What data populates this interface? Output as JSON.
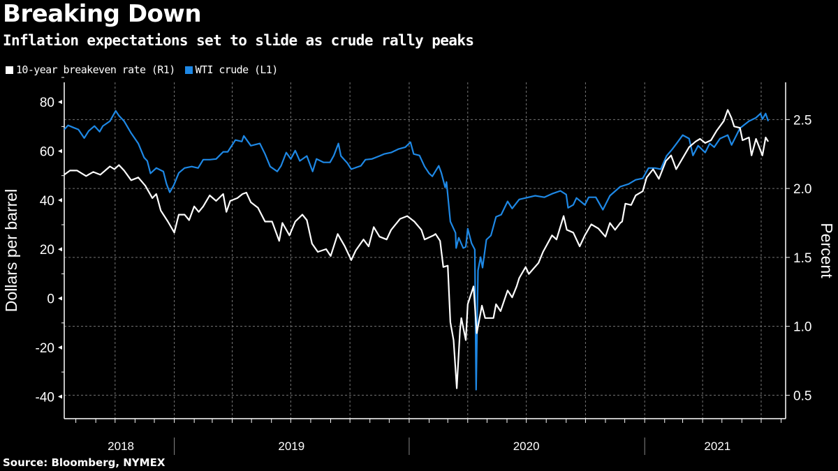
{
  "title": "Breaking Down",
  "subtitle": "Inflation expectations set to slide as crude rally peaks",
  "source": "Source: Bloomberg, NYMEX",
  "chart_data": {
    "type": "line",
    "title": "Breaking Down",
    "subtitle": "Inflation expectations set to slide as crude rally peaks",
    "legend_position": "top-left",
    "grid": true,
    "xlim": [
      "2018-07-14",
      "2021-08-08"
    ],
    "x_tick_labels": [
      {
        "label": "2018",
        "center": "2018-10-10"
      },
      {
        "label": "2019",
        "center": "2019-07-02"
      },
      {
        "label": "2020",
        "center": "2020-07-01"
      },
      {
        "label": "2021",
        "center": "2021-04-24"
      }
    ],
    "year_separators": [
      "2019-01-01",
      "2020-01-01",
      "2021-01-01"
    ],
    "left_axis": {
      "label": "Dollars per barrel",
      "ylim": [
        -49,
        88
      ],
      "ticks": [
        -40,
        -20,
        0,
        20,
        40,
        60,
        80
      ]
    },
    "right_axis": {
      "label": "Percent",
      "ylim": [
        0.33,
        2.77
      ],
      "ticks": [
        0.5,
        1.0,
        1.5,
        2.0,
        2.5
      ],
      "tick_labels": [
        "0.5",
        "1.0",
        "1.5",
        "2.0",
        "2.5"
      ]
    },
    "series": [
      {
        "name": "10-year breakeven rate (R1)",
        "axis": "right",
        "color": "#ffffff",
        "points": [
          [
            "2018-07-14",
            2.1
          ],
          [
            "2018-07-23",
            2.13
          ],
          [
            "2018-08-03",
            2.13
          ],
          [
            "2018-08-17",
            2.09
          ],
          [
            "2018-08-28",
            2.12
          ],
          [
            "2018-09-08",
            2.1
          ],
          [
            "2018-09-23",
            2.16
          ],
          [
            "2018-09-30",
            2.14
          ],
          [
            "2018-10-07",
            2.17
          ],
          [
            "2018-10-15",
            2.13
          ],
          [
            "2018-10-26",
            2.06
          ],
          [
            "2018-11-06",
            2.08
          ],
          [
            "2018-11-17",
            2.02
          ],
          [
            "2018-11-28",
            1.93
          ],
          [
            "2018-12-04",
            1.96
          ],
          [
            "2018-12-11",
            1.84
          ],
          [
            "2018-12-22",
            1.76
          ],
          [
            "2019-01-01",
            1.68
          ],
          [
            "2019-01-08",
            1.81
          ],
          [
            "2019-01-17",
            1.81
          ],
          [
            "2019-01-24",
            1.77
          ],
          [
            "2019-02-01",
            1.87
          ],
          [
            "2019-02-08",
            1.83
          ],
          [
            "2019-02-15",
            1.87
          ],
          [
            "2019-02-25",
            1.95
          ],
          [
            "2019-03-07",
            1.91
          ],
          [
            "2019-03-18",
            1.96
          ],
          [
            "2019-03-23",
            1.83
          ],
          [
            "2019-03-29",
            1.91
          ],
          [
            "2019-04-09",
            1.93
          ],
          [
            "2019-04-17",
            1.96
          ],
          [
            "2019-04-23",
            1.97
          ],
          [
            "2019-04-30",
            1.9
          ],
          [
            "2019-05-11",
            1.86
          ],
          [
            "2019-05-22",
            1.76
          ],
          [
            "2019-06-02",
            1.76
          ],
          [
            "2019-06-13",
            1.62
          ],
          [
            "2019-06-18",
            1.75
          ],
          [
            "2019-06-29",
            1.66
          ],
          [
            "2019-07-08",
            1.76
          ],
          [
            "2019-07-19",
            1.81
          ],
          [
            "2019-07-26",
            1.77
          ],
          [
            "2019-08-03",
            1.6
          ],
          [
            "2019-08-12",
            1.54
          ],
          [
            "2019-08-25",
            1.56
          ],
          [
            "2019-09-01",
            1.51
          ],
          [
            "2019-09-12",
            1.67
          ],
          [
            "2019-09-23",
            1.58
          ],
          [
            "2019-10-03",
            1.48
          ],
          [
            "2019-10-10",
            1.55
          ],
          [
            "2019-10-22",
            1.63
          ],
          [
            "2019-10-30",
            1.58
          ],
          [
            "2019-11-07",
            1.72
          ],
          [
            "2019-11-16",
            1.65
          ],
          [
            "2019-11-27",
            1.63
          ],
          [
            "2019-12-04",
            1.7
          ],
          [
            "2019-12-18",
            1.78
          ],
          [
            "2019-12-29",
            1.8
          ],
          [
            "2020-01-09",
            1.76
          ],
          [
            "2020-01-20",
            1.7
          ],
          [
            "2020-01-25",
            1.63
          ],
          [
            "2020-02-08",
            1.66
          ],
          [
            "2020-02-11",
            1.67
          ],
          [
            "2020-02-18",
            1.62
          ],
          [
            "2020-02-23",
            1.43
          ],
          [
            "2020-03-01",
            1.44
          ],
          [
            "2020-03-05",
            1.03
          ],
          [
            "2020-03-10",
            0.9
          ],
          [
            "2020-03-15",
            0.55
          ],
          [
            "2020-03-20",
            0.97
          ],
          [
            "2020-03-22",
            1.06
          ],
          [
            "2020-03-29",
            0.9
          ],
          [
            "2020-04-01",
            1.16
          ],
          [
            "2020-04-10",
            1.29
          ],
          [
            "2020-04-15",
            0.95
          ],
          [
            "2020-04-23",
            1.15
          ],
          [
            "2020-04-28",
            1.06
          ],
          [
            "2020-05-11",
            1.06
          ],
          [
            "2020-05-15",
            1.16
          ],
          [
            "2020-05-22",
            1.11
          ],
          [
            "2020-06-02",
            1.26
          ],
          [
            "2020-06-09",
            1.21
          ],
          [
            "2020-06-16",
            1.29
          ],
          [
            "2020-06-20",
            1.35
          ],
          [
            "2020-06-30",
            1.43
          ],
          [
            "2020-07-05",
            1.38
          ],
          [
            "2020-07-20",
            1.46
          ],
          [
            "2020-07-27",
            1.54
          ],
          [
            "2020-08-10",
            1.66
          ],
          [
            "2020-08-17",
            1.63
          ],
          [
            "2020-08-28",
            1.8
          ],
          [
            "2020-09-02",
            1.7
          ],
          [
            "2020-09-12",
            1.68
          ],
          [
            "2020-09-22",
            1.58
          ],
          [
            "2020-09-30",
            1.66
          ],
          [
            "2020-10-10",
            1.74
          ],
          [
            "2020-10-21",
            1.71
          ],
          [
            "2020-11-01",
            1.65
          ],
          [
            "2020-11-08",
            1.75
          ],
          [
            "2020-11-16",
            1.7
          ],
          [
            "2020-11-24",
            1.75
          ],
          [
            "2020-11-27",
            1.76
          ],
          [
            "2020-12-02",
            1.89
          ],
          [
            "2020-12-11",
            1.88
          ],
          [
            "2020-12-18",
            1.95
          ],
          [
            "2020-12-29",
            1.98
          ],
          [
            "2021-01-04",
            2.08
          ],
          [
            "2021-01-14",
            2.14
          ],
          [
            "2021-01-23",
            2.07
          ],
          [
            "2021-02-03",
            2.2
          ],
          [
            "2021-02-11",
            2.24
          ],
          [
            "2021-02-19",
            2.14
          ],
          [
            "2021-03-01",
            2.22
          ],
          [
            "2021-03-11",
            2.3
          ],
          [
            "2021-03-21",
            2.34
          ],
          [
            "2021-03-28",
            2.36
          ],
          [
            "2021-04-05",
            2.33
          ],
          [
            "2021-04-14",
            2.35
          ],
          [
            "2021-04-23",
            2.42
          ],
          [
            "2021-05-04",
            2.49
          ],
          [
            "2021-05-10",
            2.57
          ],
          [
            "2021-05-16",
            2.51
          ],
          [
            "2021-05-20",
            2.45
          ],
          [
            "2021-05-29",
            2.44
          ],
          [
            "2021-06-02",
            2.35
          ],
          [
            "2021-06-12",
            2.37
          ],
          [
            "2021-06-16",
            2.24
          ],
          [
            "2021-06-23",
            2.36
          ],
          [
            "2021-07-03",
            2.24
          ],
          [
            "2021-07-08",
            2.37
          ],
          [
            "2021-07-12",
            2.34
          ]
        ]
      },
      {
        "name": "WTI crude (L1)",
        "axis": "left",
        "color": "#1e88e5",
        "points": [
          [
            "2018-07-14",
            68.8
          ],
          [
            "2018-07-20",
            70.5
          ],
          [
            "2018-07-28",
            69.6
          ],
          [
            "2018-08-05",
            68.8
          ],
          [
            "2018-08-14",
            65.3
          ],
          [
            "2018-08-21",
            68.2
          ],
          [
            "2018-08-30",
            70.2
          ],
          [
            "2018-09-07",
            67.9
          ],
          [
            "2018-09-12",
            70.2
          ],
          [
            "2018-09-23",
            72.2
          ],
          [
            "2018-10-02",
            76.4
          ],
          [
            "2018-10-07",
            74.4
          ],
          [
            "2018-10-15",
            72.2
          ],
          [
            "2018-10-26",
            67.3
          ],
          [
            "2018-11-06",
            63.1
          ],
          [
            "2018-11-15",
            57.4
          ],
          [
            "2018-11-20",
            56.0
          ],
          [
            "2018-11-25",
            50.9
          ],
          [
            "2018-12-04",
            53.1
          ],
          [
            "2018-12-15",
            51.7
          ],
          [
            "2018-12-20",
            46.6
          ],
          [
            "2018-12-25",
            43.2
          ],
          [
            "2018-12-31",
            46.0
          ],
          [
            "2019-01-08",
            51.1
          ],
          [
            "2019-01-17",
            53.1
          ],
          [
            "2019-01-28",
            53.7
          ],
          [
            "2019-02-07",
            53.1
          ],
          [
            "2019-02-15",
            56.5
          ],
          [
            "2019-02-25",
            56.5
          ],
          [
            "2019-03-07",
            56.8
          ],
          [
            "2019-03-18",
            59.7
          ],
          [
            "2019-03-25",
            59.7
          ],
          [
            "2019-04-06",
            64.5
          ],
          [
            "2019-04-16",
            63.9
          ],
          [
            "2019-04-19",
            66.2
          ],
          [
            "2019-04-30",
            62.2
          ],
          [
            "2019-05-14",
            63.1
          ],
          [
            "2019-05-22",
            58.8
          ],
          [
            "2019-05-30",
            53.7
          ],
          [
            "2019-06-10",
            51.7
          ],
          [
            "2019-06-16",
            54.0
          ],
          [
            "2019-06-24",
            59.4
          ],
          [
            "2019-07-01",
            56.8
          ],
          [
            "2019-07-08",
            60.2
          ],
          [
            "2019-07-15",
            56.0
          ],
          [
            "2019-07-26",
            58.0
          ],
          [
            "2019-08-04",
            51.7
          ],
          [
            "2019-08-10",
            56.8
          ],
          [
            "2019-08-21",
            55.4
          ],
          [
            "2019-08-31",
            55.4
          ],
          [
            "2019-09-06",
            58.2
          ],
          [
            "2019-09-13",
            63.1
          ],
          [
            "2019-09-17",
            58.0
          ],
          [
            "2019-09-27",
            55.1
          ],
          [
            "2019-10-03",
            52.6
          ],
          [
            "2019-10-18",
            54.0
          ],
          [
            "2019-10-25",
            56.5
          ],
          [
            "2019-11-04",
            56.8
          ],
          [
            "2019-11-16",
            58.0
          ],
          [
            "2019-11-23",
            58.8
          ],
          [
            "2019-12-04",
            59.4
          ],
          [
            "2019-12-15",
            60.8
          ],
          [
            "2019-12-26",
            61.6
          ],
          [
            "2020-01-03",
            63.6
          ],
          [
            "2020-01-08",
            58.8
          ],
          [
            "2020-01-17",
            58.2
          ],
          [
            "2020-01-25",
            53.7
          ],
          [
            "2020-02-01",
            50.9
          ],
          [
            "2020-02-06",
            49.7
          ],
          [
            "2020-02-16",
            54.0
          ],
          [
            "2020-02-20",
            51.1
          ],
          [
            "2020-02-26",
            45.2
          ],
          [
            "2020-02-28",
            47.4
          ],
          [
            "2020-03-05",
            31.3
          ],
          [
            "2020-03-13",
            26.7
          ],
          [
            "2020-03-14",
            20.5
          ],
          [
            "2020-03-18",
            24.7
          ],
          [
            "2020-03-25",
            20.5
          ],
          [
            "2020-03-29",
            21.0
          ],
          [
            "2020-04-01",
            28.4
          ],
          [
            "2020-04-07",
            22.4
          ],
          [
            "2020-04-12",
            19.9
          ],
          [
            "2020-04-14",
            -37.2
          ],
          [
            "2020-04-17",
            11.4
          ],
          [
            "2020-04-21",
            16.8
          ],
          [
            "2020-04-24",
            12.5
          ],
          [
            "2020-04-30",
            23.9
          ],
          [
            "2020-05-07",
            25.6
          ],
          [
            "2020-05-15",
            33.2
          ],
          [
            "2020-05-23",
            34.1
          ],
          [
            "2020-06-02",
            39.5
          ],
          [
            "2020-06-09",
            36.6
          ],
          [
            "2020-06-20",
            40.3
          ],
          [
            "2020-06-30",
            40.9
          ],
          [
            "2020-07-15",
            41.8
          ],
          [
            "2020-07-29",
            41.2
          ],
          [
            "2020-08-10",
            42.6
          ],
          [
            "2020-08-23",
            43.8
          ],
          [
            "2020-09-01",
            42.3
          ],
          [
            "2020-09-04",
            36.9
          ],
          [
            "2020-09-12",
            38.1
          ],
          [
            "2020-09-17",
            40.9
          ],
          [
            "2020-09-30",
            38.1
          ],
          [
            "2020-10-06",
            41.2
          ],
          [
            "2020-10-17",
            41.2
          ],
          [
            "2020-10-28",
            36.1
          ],
          [
            "2020-11-08",
            41.8
          ],
          [
            "2020-11-24",
            45.5
          ],
          [
            "2020-12-07",
            46.6
          ],
          [
            "2020-12-18",
            48.3
          ],
          [
            "2020-12-29",
            48.9
          ],
          [
            "2021-01-07",
            53.1
          ],
          [
            "2021-01-17",
            53.1
          ],
          [
            "2021-01-26",
            52.6
          ],
          [
            "2021-02-04",
            58.0
          ],
          [
            "2021-02-13",
            60.8
          ],
          [
            "2021-02-21",
            63.6
          ],
          [
            "2021-03-01",
            66.5
          ],
          [
            "2021-03-11",
            65.1
          ],
          [
            "2021-03-17",
            58.2
          ],
          [
            "2021-03-25",
            62.2
          ],
          [
            "2021-04-05",
            59.4
          ],
          [
            "2021-04-12",
            63.1
          ],
          [
            "2021-04-19",
            61.6
          ],
          [
            "2021-04-28",
            65.1
          ],
          [
            "2021-05-10",
            66.5
          ],
          [
            "2021-05-16",
            62.5
          ],
          [
            "2021-05-29",
            69.3
          ],
          [
            "2021-06-12",
            72.2
          ],
          [
            "2021-06-23",
            73.6
          ],
          [
            "2021-06-30",
            75.3
          ],
          [
            "2021-07-03",
            73.0
          ],
          [
            "2021-07-08",
            75.3
          ],
          [
            "2021-07-12",
            72.2
          ]
        ]
      }
    ]
  }
}
